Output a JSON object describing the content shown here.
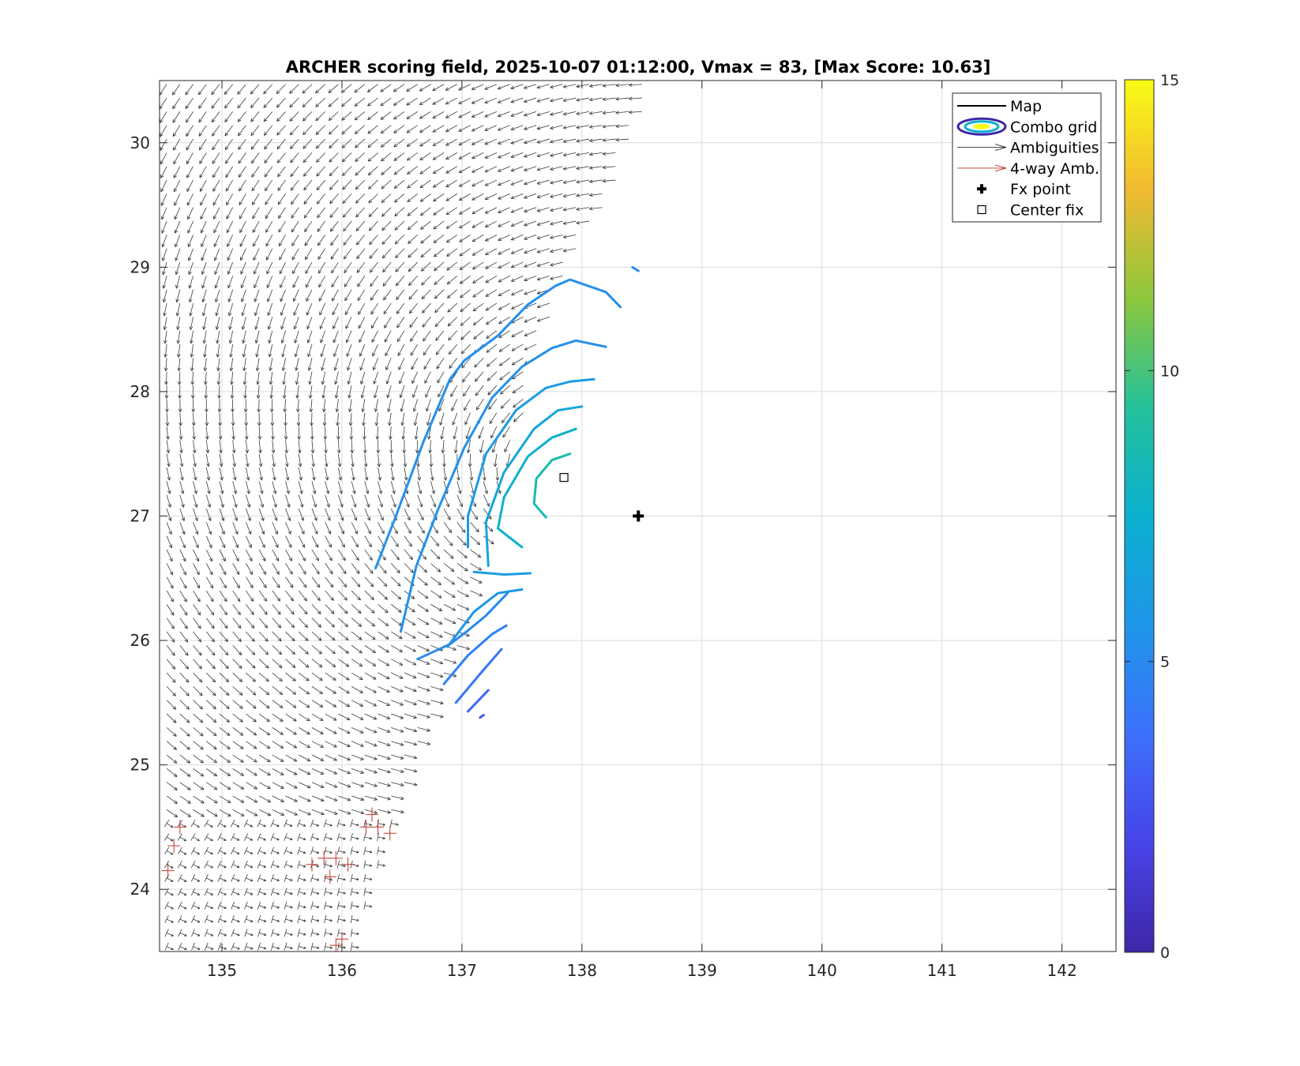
{
  "chart_data": {
    "type": "quiver-contour",
    "title": "ARCHER scoring field, 2025-10-07 01:12:00, Vmax = 83, [Max Score: 10.63]",
    "xlim": [
      134.48,
      142.45
    ],
    "ylim": [
      23.5,
      30.5
    ],
    "grid": true,
    "x_ticks": [
      "135",
      "136",
      "137",
      "138",
      "139",
      "140",
      "141",
      "142"
    ],
    "x_tick_values": [
      135,
      136,
      137,
      138,
      139,
      140,
      141,
      142
    ],
    "y_ticks": [
      "24",
      "25",
      "26",
      "27",
      "28",
      "29",
      "30"
    ],
    "y_tick_values": [
      24,
      25,
      26,
      27,
      28,
      29,
      30
    ],
    "colorbar": {
      "min": 0,
      "max": 15,
      "ticks": [
        "0",
        "5",
        "10",
        "15"
      ],
      "tick_values": [
        0,
        5,
        10,
        15
      ],
      "colormap": "parula"
    },
    "legend": {
      "placement": "top-right",
      "entries": [
        {
          "label": "Map",
          "symbol": "line",
          "color": "#000000"
        },
        {
          "label": "Combo grid",
          "symbol": "ellipse"
        },
        {
          "label": "Ambiguities",
          "symbol": "arrow",
          "color": "#333333"
        },
        {
          "label": "4-way Amb.",
          "symbol": "arrow",
          "color": "#c0392b"
        },
        {
          "label": "Fx point",
          "symbol": "plus",
          "color": "#000000"
        },
        {
          "label": "Center fix",
          "symbol": "square",
          "color": "#000000"
        }
      ]
    },
    "fx_point": {
      "lon": 138.47,
      "lat": 27.0
    },
    "center_fix": {
      "lon": 137.85,
      "lat": 27.31
    },
    "storm_center": {
      "lon": 137.85,
      "lat": 27.3
    },
    "swath": {
      "west_lon": 134.5,
      "edge": [
        [
          138.6,
          30.45
        ],
        [
          138.3,
          29.7
        ],
        [
          137.9,
          29.0
        ],
        [
          137.65,
          28.3
        ],
        [
          137.5,
          27.7
        ],
        [
          137.25,
          27.1
        ],
        [
          137.1,
          26.5
        ],
        [
          136.95,
          25.9
        ],
        [
          136.7,
          25.3
        ],
        [
          136.45,
          24.6
        ],
        [
          136.25,
          24.0
        ],
        [
          136.1,
          23.5
        ]
      ],
      "four_way_region": {
        "lat_max": 24.55
      },
      "four_way_points": [
        [
          134.65,
          24.5
        ],
        [
          134.6,
          24.35
        ],
        [
          134.55,
          24.15
        ],
        [
          135.75,
          24.2
        ],
        [
          135.85,
          24.25
        ],
        [
          135.95,
          24.25
        ],
        [
          135.9,
          24.1
        ],
        [
          136.05,
          24.2
        ],
        [
          136.2,
          24.5
        ],
        [
          136.3,
          24.5
        ],
        [
          136.4,
          24.45
        ],
        [
          136.25,
          24.6
        ],
        [
          136.0,
          23.6
        ],
        [
          135.95,
          23.55
        ]
      ]
    },
    "contours": [
      {
        "value": 5.3,
        "points": [
          [
            136.28,
            26.58
          ],
          [
            136.45,
            27.0
          ],
          [
            136.68,
            27.6
          ],
          [
            136.9,
            28.1
          ],
          [
            137.02,
            28.25
          ],
          [
            137.3,
            28.45
          ],
          [
            137.55,
            28.7
          ],
          [
            137.78,
            28.85
          ],
          [
            137.9,
            28.9
          ],
          [
            138.2,
            28.8
          ],
          [
            138.32,
            28.68
          ]
        ]
      },
      {
        "value": 5.3,
        "points": [
          [
            138.42,
            29.0
          ],
          [
            138.47,
            28.97
          ]
        ]
      },
      {
        "value": 5.4,
        "points": [
          [
            136.49,
            26.07
          ],
          [
            136.62,
            26.6
          ],
          [
            136.8,
            27.05
          ],
          [
            137.02,
            27.55
          ],
          [
            137.25,
            27.95
          ],
          [
            137.5,
            28.2
          ],
          [
            137.75,
            28.35
          ],
          [
            137.95,
            28.41
          ],
          [
            138.2,
            28.36
          ]
        ]
      },
      {
        "value": 6.0,
        "points": [
          [
            137.05,
            26.75
          ],
          [
            137.05,
            27.0
          ],
          [
            137.2,
            27.5
          ],
          [
            137.45,
            27.85
          ],
          [
            137.7,
            28.03
          ],
          [
            137.9,
            28.08
          ],
          [
            138.1,
            28.1
          ]
        ]
      },
      {
        "value": 6.7,
        "points": [
          [
            137.22,
            26.6
          ],
          [
            137.2,
            26.95
          ],
          [
            137.35,
            27.35
          ],
          [
            137.6,
            27.7
          ],
          [
            137.8,
            27.85
          ],
          [
            138.0,
            27.88
          ]
        ]
      },
      {
        "value": 7.6,
        "points": [
          [
            137.5,
            26.75
          ],
          [
            137.3,
            26.9
          ],
          [
            137.35,
            27.15
          ],
          [
            137.55,
            27.48
          ],
          [
            137.75,
            27.63
          ],
          [
            137.95,
            27.7
          ]
        ]
      },
      {
        "value": 8.7,
        "points": [
          [
            137.7,
            26.99
          ],
          [
            137.6,
            27.1
          ],
          [
            137.62,
            27.3
          ],
          [
            137.75,
            27.45
          ],
          [
            137.9,
            27.5
          ]
        ]
      },
      {
        "value": 6.1,
        "points": [
          [
            137.1,
            26.55
          ],
          [
            137.35,
            26.53
          ],
          [
            137.57,
            26.54
          ]
        ]
      },
      {
        "value": 5.7,
        "points": [
          [
            136.88,
            25.95
          ],
          [
            137.1,
            26.23
          ],
          [
            137.3,
            26.38
          ],
          [
            137.5,
            26.41
          ]
        ]
      },
      {
        "value": 5.0,
        "points": [
          [
            136.63,
            25.85
          ],
          [
            136.9,
            25.97
          ],
          [
            137.05,
            26.08
          ],
          [
            137.2,
            26.2
          ],
          [
            137.38,
            26.38
          ]
        ]
      },
      {
        "value": 4.6,
        "points": [
          [
            136.85,
            25.65
          ],
          [
            137.05,
            25.88
          ],
          [
            137.25,
            26.05
          ],
          [
            137.37,
            26.12
          ]
        ]
      },
      {
        "value": 4.1,
        "points": [
          [
            136.95,
            25.5
          ],
          [
            137.15,
            25.73
          ],
          [
            137.33,
            25.93
          ]
        ]
      },
      {
        "value": 3.4,
        "points": [
          [
            137.05,
            25.43
          ],
          [
            137.22,
            25.6
          ]
        ]
      },
      {
        "value": 2.9,
        "points": [
          [
            137.15,
            25.38
          ],
          [
            137.18,
            25.4
          ]
        ]
      }
    ]
  }
}
